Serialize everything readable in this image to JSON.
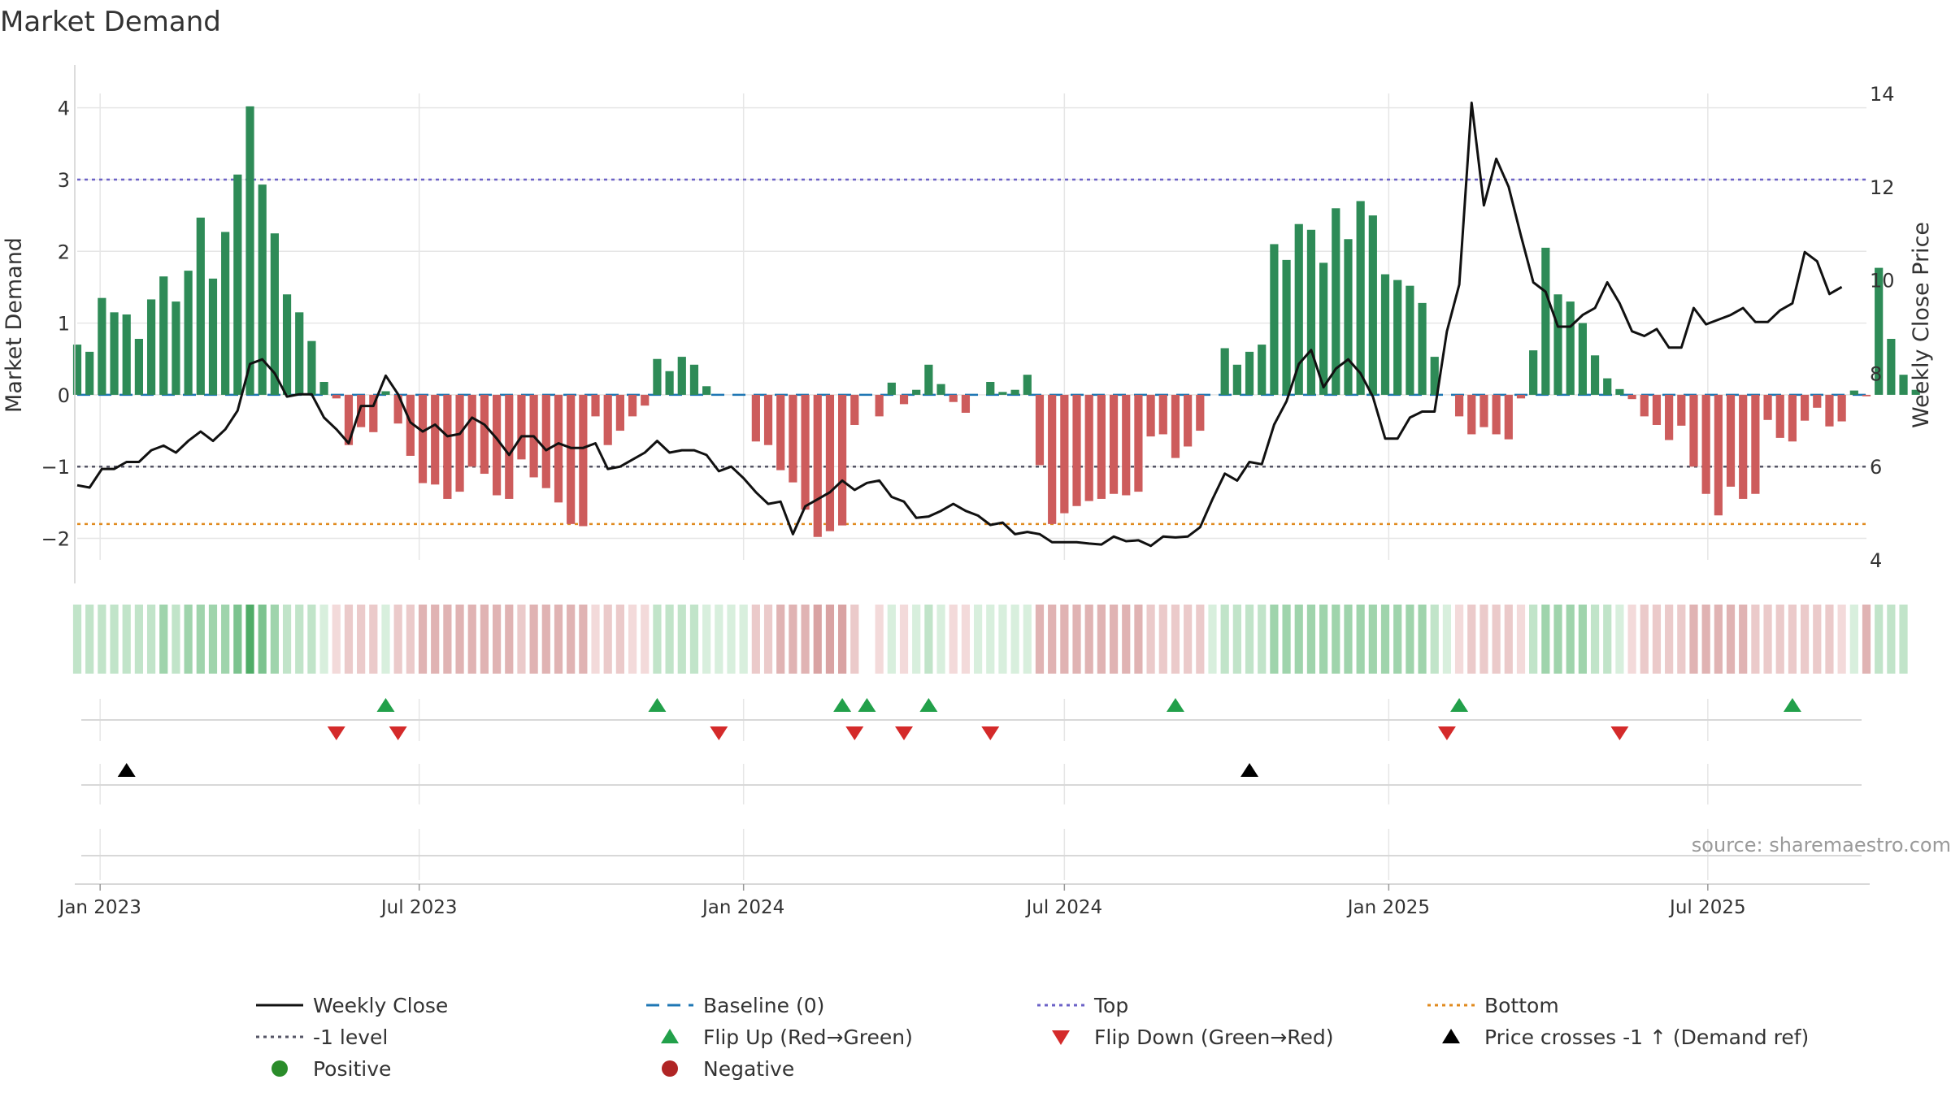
{
  "chart_data": {
    "type": "bar",
    "title": "Market Demand",
    "ylabel": "Market Demand",
    "y2label": "Weekly Close Price",
    "ylim": [
      -2.3,
      4.2
    ],
    "y2lim": [
      4,
      14
    ],
    "yticks": [
      {
        "v": -2,
        "label": "−2"
      },
      {
        "v": -1,
        "label": "−1"
      },
      {
        "v": 0,
        "label": "0"
      },
      {
        "v": 1,
        "label": "1"
      },
      {
        "v": 2,
        "label": "2"
      },
      {
        "v": 3,
        "label": "3"
      },
      {
        "v": 4,
        "label": "4"
      }
    ],
    "y2ticks": [
      4,
      6,
      8,
      10,
      12,
      14
    ],
    "xlim": [
      "2022-12-19",
      "2025-09-29"
    ],
    "xticks": [
      {
        "date": "2023-01-01",
        "label": "Jan 2023"
      },
      {
        "date": "2023-07-01",
        "label": "Jul 2023"
      },
      {
        "date": "2024-01-01",
        "label": "Jan 2024"
      },
      {
        "date": "2024-07-01",
        "label": "Jul 2024"
      },
      {
        "date": "2025-01-01",
        "label": "Jan 2025"
      },
      {
        "date": "2025-07-01",
        "label": "Jul 2025"
      }
    ],
    "start_date": "2022-12-19",
    "week_days": 7,
    "demand": [
      0.7,
      0.6,
      1.35,
      1.15,
      1.12,
      0.78,
      1.33,
      1.65,
      1.3,
      1.73,
      2.47,
      1.62,
      2.27,
      3.07,
      4.02,
      2.93,
      2.25,
      1.4,
      1.15,
      0.75,
      0.18,
      -0.05,
      -0.7,
      -0.45,
      -0.52,
      0.05,
      -0.4,
      -0.85,
      -1.23,
      -1.25,
      -1.45,
      -1.35,
      -1.0,
      -1.1,
      -1.4,
      -1.45,
      -0.9,
      -1.15,
      -1.3,
      -1.5,
      -1.8,
      -1.83,
      -0.3,
      -0.7,
      -0.5,
      -0.3,
      -0.15,
      0.5,
      0.33,
      0.53,
      0.42,
      0.12,
      0,
      0,
      0,
      -0.65,
      -0.7,
      -1.05,
      -1.22,
      -1.6,
      -1.98,
      -1.9,
      -1.82,
      -0.42,
      0,
      -0.3,
      0.17,
      -0.13,
      0.07,
      0.42,
      0.15,
      -0.1,
      -0.25,
      0,
      0.18,
      0.04,
      0.07,
      0.28,
      -0.98,
      -1.8,
      -1.65,
      -1.55,
      -1.48,
      -1.45,
      -1.38,
      -1.4,
      -1.35,
      -0.58,
      -0.55,
      -0.88,
      -0.72,
      -0.5,
      0,
      0.65,
      0.42,
      0.6,
      0.7,
      2.1,
      1.88,
      2.38,
      2.3,
      1.84,
      2.6,
      2.17,
      2.7,
      2.5,
      1.68,
      1.6,
      1.52,
      1.28,
      0.53,
      0,
      -0.3,
      -0.55,
      -0.45,
      -0.55,
      -0.62,
      -0.05,
      0.62,
      2.05,
      1.4,
      1.3,
      1.0,
      0.55,
      0.23,
      0.08,
      -0.06,
      -0.3,
      -0.42,
      -0.63,
      -0.43,
      -1.0,
      -1.38,
      -1.68,
      -1.28,
      -1.45,
      -1.38,
      -0.35,
      -0.6,
      -0.65,
      -0.36,
      -0.18,
      -0.44,
      -0.37,
      0.06,
      -0.02,
      1.77,
      0.78,
      0.28,
      0.07
    ],
    "close_price": [
      5.6,
      5.55,
      5.95,
      5.95,
      6.1,
      6.1,
      6.35,
      6.45,
      6.3,
      6.55,
      6.75,
      6.55,
      6.8,
      7.2,
      8.2,
      8.3,
      8.0,
      7.5,
      7.55,
      7.55,
      7.05,
      6.8,
      6.5,
      7.3,
      7.3,
      7.95,
      7.55,
      6.95,
      6.75,
      6.9,
      6.65,
      6.7,
      7.05,
      6.9,
      6.6,
      6.25,
      6.65,
      6.65,
      6.35,
      6.5,
      6.4,
      6.4,
      6.5,
      5.95,
      6.0,
      6.15,
      6.3,
      6.55,
      6.3,
      6.35,
      6.35,
      6.25,
      5.9,
      6.0,
      5.75,
      5.45,
      5.2,
      5.25,
      4.55,
      5.15,
      5.3,
      5.45,
      5.7,
      5.5,
      5.65,
      5.7,
      5.35,
      5.25,
      4.9,
      4.93,
      5.05,
      5.2,
      5.05,
      4.95,
      4.75,
      4.8,
      4.55,
      4.6,
      4.55,
      4.38,
      4.38,
      4.38,
      4.35,
      4.33,
      4.5,
      4.4,
      4.42,
      4.3,
      4.5,
      4.48,
      4.5,
      4.7,
      5.3,
      5.85,
      5.7,
      6.1,
      6.05,
      6.9,
      7.4,
      8.2,
      8.5,
      7.7,
      8.1,
      8.3,
      8.0,
      7.5,
      6.6,
      6.6,
      7.05,
      7.18,
      7.18,
      8.9,
      9.9,
      13.8,
      11.6,
      12.6,
      12.0,
      10.95,
      9.95,
      9.75,
      9.0,
      9.0,
      9.25,
      9.4,
      9.95,
      9.5,
      8.9,
      8.8,
      8.95,
      8.55,
      8.55,
      9.4,
      9.05,
      9.15,
      9.25,
      9.4,
      9.1,
      9.1,
      9.35,
      9.5,
      10.6,
      10.4,
      9.7,
      9.85
    ],
    "baseline": 0,
    "top": 3,
    "bottom": -1.8,
    "minus1": -1,
    "strip_levels": [
      1,
      1,
      1,
      1,
      1,
      1,
      1,
      2,
      1,
      2,
      2,
      2,
      2,
      3,
      4,
      3,
      2,
      1,
      1,
      1,
      0,
      0,
      1,
      1,
      1,
      0,
      1,
      1,
      2,
      2,
      2,
      2,
      2,
      2,
      2,
      2,
      1,
      2,
      2,
      2,
      2,
      2,
      0,
      1,
      1,
      0,
      0,
      1,
      1,
      1,
      1,
      0,
      0,
      0,
      0,
      1,
      1,
      2,
      2,
      2,
      3,
      3,
      3,
      1,
      -1,
      0,
      0,
      0,
      0,
      1,
      0,
      0,
      0,
      0,
      0,
      0,
      0,
      0,
      2,
      2,
      2,
      2,
      2,
      2,
      2,
      2,
      2,
      1,
      1,
      1,
      1,
      1,
      0,
      1,
      1,
      1,
      1,
      2,
      2,
      2,
      2,
      2,
      2,
      2,
      2,
      2,
      2,
      2,
      2,
      2,
      1,
      0,
      0,
      1,
      1,
      1,
      1,
      0,
      1,
      2,
      2,
      2,
      2,
      1,
      1,
      0,
      0,
      1,
      1,
      1,
      1,
      2,
      2,
      2,
      2,
      2,
      1,
      1,
      1,
      1,
      1,
      1,
      1,
      0,
      0,
      2,
      1,
      1,
      1
    ],
    "flip_up_idx": [
      25,
      47,
      62,
      64,
      69,
      89,
      112,
      139
    ],
    "flip_down_idx": [
      21,
      26,
      52,
      63,
      67,
      74,
      111,
      125
    ],
    "cross_idx": [
      4,
      95
    ],
    "annotation": "source: sharemaestro.com",
    "legend_items": [
      {
        "label": "Weekly Close",
        "kind": "line-solid",
        "color": "#111111"
      },
      {
        "label": "Baseline (0)",
        "kind": "line-dash",
        "color": "#1f77b4"
      },
      {
        "label": "Top",
        "kind": "line-dot",
        "color": "#6b61c7"
      },
      {
        "label": "Bottom",
        "kind": "line-dot",
        "color": "#e08a1e"
      },
      {
        "label": "-1 level",
        "kind": "line-dot",
        "color": "#555566"
      },
      {
        "label": "Flip Up (Red→Green)",
        "kind": "tri-up",
        "color": "#22a04a"
      },
      {
        "label": "Flip Down (Green→Red)",
        "kind": "tri-down",
        "color": "#d42a2a"
      },
      {
        "label": "Price crosses -1 ↑ (Demand ref)",
        "kind": "tri-up",
        "color": "#000000"
      },
      {
        "label": "Positive",
        "kind": "dot",
        "color": "#2a8c2a"
      },
      {
        "label": "Negative",
        "kind": "dot",
        "color": "#b02525"
      }
    ],
    "colors": {
      "positive_bar": "#2e8b57",
      "negative_bar": "#cd5c5c",
      "price_line": "#111111",
      "grid": "#e6e6e6"
    }
  }
}
